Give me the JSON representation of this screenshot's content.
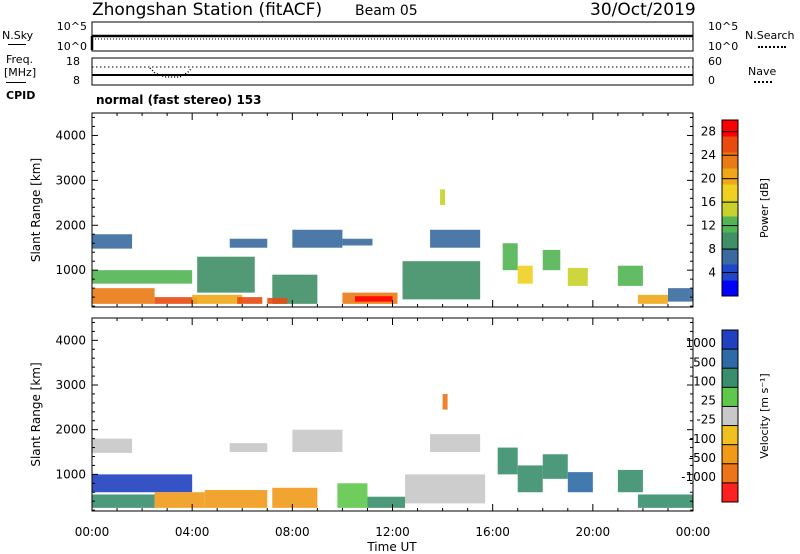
{
  "header": {
    "station": "Zhongshan Station (fitACF)",
    "beam": "Beam 05",
    "date": "30/Oct/2019"
  },
  "top_panels": {
    "nsky_label": "N.Sky",
    "nsky_ticks": [
      "10^5",
      "10^0"
    ],
    "nsearch_label": "N.Search",
    "nsearch_ticks": [
      "10^5",
      "10^0"
    ],
    "freq_label_1": "Freq.",
    "freq_label_2": "[MHz]",
    "freq_ticks": [
      "18",
      "8"
    ],
    "nave_label": "Nave",
    "nave_ticks": [
      "60",
      "0"
    ],
    "cpid_label": "CPID",
    "cpid_text": "normal (fast stereo) 153"
  },
  "chart_data": [
    {
      "type": "heatmap",
      "name": "power",
      "title": "",
      "xlabel": "Time UT",
      "ylabel": "Slant Range [km]",
      "xticks": [
        "00:00",
        "04:00",
        "08:00",
        "12:00",
        "16:00",
        "20:00",
        "00:00"
      ],
      "yticks": [
        1000,
        2000,
        3000,
        4000
      ],
      "xlim_hours": [
        0,
        24
      ],
      "ylim_km": [
        180,
        4500
      ],
      "colorbar": {
        "label": "Power [dB]",
        "ticks": [
          4,
          8,
          12,
          16,
          20,
          24,
          28
        ],
        "range": [
          0,
          30
        ],
        "colors": [
          "#0000ff",
          "#1d46c8",
          "#3a6aa0",
          "#3f8f67",
          "#52b452",
          "#c8d22a",
          "#f0d020",
          "#f0a818",
          "#ea7a14",
          "#e84a10",
          "#ff0000"
        ]
      },
      "regions": [
        {
          "t": [
            0.0,
            1.6
          ],
          "r": [
            1480,
            1800
          ],
          "level": 7
        },
        {
          "t": [
            0.0,
            4.0
          ],
          "r": [
            700,
            1000
          ],
          "level": 11
        },
        {
          "t": [
            0.0,
            2.5
          ],
          "r": [
            250,
            600
          ],
          "level": 22
        },
        {
          "t": [
            2.5,
            4.2
          ],
          "r": [
            250,
            400
          ],
          "level": 27
        },
        {
          "t": [
            4.2,
            6.5
          ],
          "r": [
            500,
            1300
          ],
          "level": 9
        },
        {
          "t": [
            4.0,
            6.0
          ],
          "r": [
            250,
            450
          ],
          "level": 20
        },
        {
          "t": [
            5.8,
            6.8
          ],
          "r": [
            250,
            400
          ],
          "level": 26
        },
        {
          "t": [
            5.5,
            7.0
          ],
          "r": [
            1500,
            1700
          ],
          "level": 8
        },
        {
          "t": [
            7.2,
            9.0
          ],
          "r": [
            250,
            900
          ],
          "level": 10
        },
        {
          "t": [
            7.0,
            7.8
          ],
          "r": [
            250,
            380
          ],
          "level": 25
        },
        {
          "t": [
            8.0,
            10.0
          ],
          "r": [
            1500,
            1900
          ],
          "level": 7
        },
        {
          "t": [
            10.0,
            12.2
          ],
          "r": [
            250,
            500
          ],
          "level": 24
        },
        {
          "t": [
            10.5,
            12.0
          ],
          "r": [
            300,
            420
          ],
          "level": 29
        },
        {
          "t": [
            10.0,
            11.2
          ],
          "r": [
            1550,
            1700
          ],
          "level": 8
        },
        {
          "t": [
            12.4,
            15.5
          ],
          "r": [
            350,
            1200
          ],
          "level": 9
        },
        {
          "t": [
            13.5,
            15.5
          ],
          "r": [
            1500,
            1900
          ],
          "level": 7
        },
        {
          "t": [
            13.9,
            14.1
          ],
          "r": [
            2450,
            2800
          ],
          "level": 14
        },
        {
          "t": [
            16.4,
            17.0
          ],
          "r": [
            1000,
            1600
          ],
          "level": 13
        },
        {
          "t": [
            17.0,
            17.6
          ],
          "r": [
            700,
            1100
          ],
          "level": 17
        },
        {
          "t": [
            18.0,
            18.7
          ],
          "r": [
            1000,
            1450
          ],
          "level": 11
        },
        {
          "t": [
            19.0,
            19.8
          ],
          "r": [
            650,
            1050
          ],
          "level": 15
        },
        {
          "t": [
            21.0,
            22.0
          ],
          "r": [
            650,
            1100
          ],
          "level": 12
        },
        {
          "t": [
            21.8,
            23.0
          ],
          "r": [
            250,
            450
          ],
          "level": 20
        },
        {
          "t": [
            23.0,
            24.0
          ],
          "r": [
            300,
            600
          ],
          "level": 8
        }
      ]
    },
    {
      "type": "heatmap",
      "name": "velocity",
      "title": "",
      "xlabel": "Time UT",
      "ylabel": "Slant Range [km]",
      "xticks": [
        "00:00",
        "04:00",
        "08:00",
        "12:00",
        "16:00",
        "20:00",
        "00:00"
      ],
      "yticks": [
        1000,
        2000,
        3000,
        4000
      ],
      "xlim_hours": [
        0,
        24
      ],
      "ylim_km": [
        180,
        4500
      ],
      "colorbar": {
        "label": "Velocity [m s^-1]",
        "ticks": [
          "1000",
          "500",
          "100",
          "25",
          "-25",
          "-100",
          "-500",
          "-1000"
        ],
        "colors": [
          "#2040c0",
          "#2d6aa6",
          "#3a8e6e",
          "#5ec84a",
          "#c8c8c8",
          "#f0c020",
          "#f09a18",
          "#ee7418",
          "#ff2020"
        ]
      },
      "regions": [
        {
          "t": [
            0.0,
            1.6
          ],
          "r": [
            1480,
            1800
          ],
          "level": 4
        },
        {
          "t": [
            0.0,
            4.0
          ],
          "r": [
            600,
            1000
          ],
          "level": 0
        },
        {
          "t": [
            0.0,
            2.5
          ],
          "r": [
            250,
            550
          ],
          "level": 2
        },
        {
          "t": [
            2.5,
            4.5
          ],
          "r": [
            250,
            600
          ],
          "level": 6
        },
        {
          "t": [
            4.5,
            7.0
          ],
          "r": [
            250,
            650
          ],
          "level": 6
        },
        {
          "t": [
            5.5,
            7.0
          ],
          "r": [
            1500,
            1700
          ],
          "level": 4
        },
        {
          "t": [
            7.2,
            9.0
          ],
          "r": [
            250,
            700
          ],
          "level": 6
        },
        {
          "t": [
            8.0,
            10.0
          ],
          "r": [
            1500,
            2000
          ],
          "level": 4
        },
        {
          "t": [
            9.8,
            11.0
          ],
          "r": [
            250,
            800
          ],
          "level": 3
        },
        {
          "t": [
            11.0,
            12.5
          ],
          "r": [
            250,
            500
          ],
          "level": 2
        },
        {
          "t": [
            12.5,
            15.7
          ],
          "r": [
            350,
            1000
          ],
          "level": 4
        },
        {
          "t": [
            13.5,
            15.5
          ],
          "r": [
            1500,
            1900
          ],
          "level": 4
        },
        {
          "t": [
            14.0,
            14.2
          ],
          "r": [
            2450,
            2800
          ],
          "level": 7
        },
        {
          "t": [
            16.2,
            17.0
          ],
          "r": [
            1000,
            1600
          ],
          "level": 2
        },
        {
          "t": [
            17.0,
            18.0
          ],
          "r": [
            600,
            1200
          ],
          "level": 2
        },
        {
          "t": [
            18.0,
            19.0
          ],
          "r": [
            900,
            1450
          ],
          "level": 2
        },
        {
          "t": [
            19.0,
            20.0
          ],
          "r": [
            600,
            1050
          ],
          "level": 1
        },
        {
          "t": [
            21.0,
            22.0
          ],
          "r": [
            600,
            1100
          ],
          "level": 2
        },
        {
          "t": [
            21.8,
            24.0
          ],
          "r": [
            250,
            550
          ],
          "level": 2
        }
      ]
    }
  ]
}
